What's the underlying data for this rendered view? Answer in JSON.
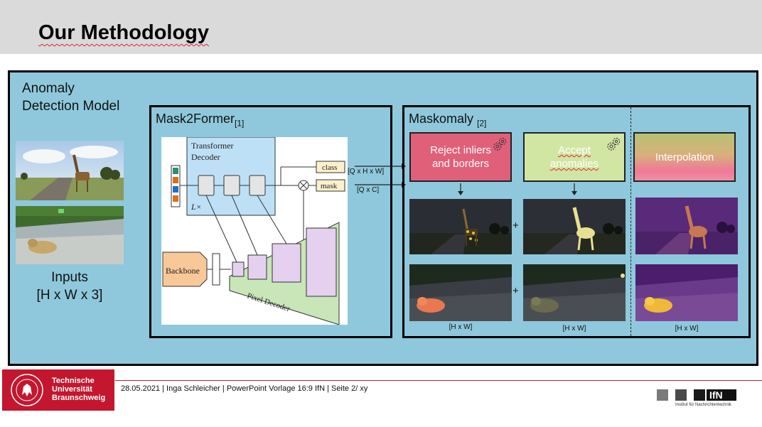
{
  "slide": {
    "title": "Our Methodology"
  },
  "main": {
    "anomaly_title_line1": "Anomaly",
    "anomaly_title_line2": "Detection Model",
    "inputs_label_line1": "Inputs",
    "inputs_label_line2": "[H x W x 3]"
  },
  "mask2former": {
    "title": "Mask2Former",
    "ref": "[1]",
    "transformer_label_line1": "Transformer",
    "transformer_label_line2": "Decoder",
    "lx_label": "L×",
    "class_label": "class",
    "mask_label": "mask",
    "backbone_label": "Backbone",
    "pixel_decoder_label": "Pixel Decoder",
    "class_dim": "[Q x H x W]",
    "mask_dim": "[Q x C]"
  },
  "maskomaly": {
    "title": "Maskomaly",
    "ref": "[2]",
    "reject_label": "Reject inliers and borders",
    "accept_label": "Accept anomalies",
    "interp_label": "Interpolation",
    "plus_sign": "+",
    "dim_label": "[H x W]"
  },
  "footer": {
    "uni_line1": "Technische",
    "uni_line2": "Universität",
    "uni_line3": "Braunschweig",
    "info": "28.05.2021 | Inga Schleicher | PowerPoint Vorlage 16:9 IfN | Seite 2/ xy",
    "ifn_logo": "IfN",
    "ifn_sub": "Institut für Nachrichtentechnik"
  },
  "icons": {
    "gear": "gear-icon",
    "arrow": "arrow-down-icon"
  },
  "colors": {
    "panel_bg": "#8fc8dc",
    "reject": "#e0607a",
    "accept": "#d1e6a3",
    "brand_red": "#c4162e"
  }
}
